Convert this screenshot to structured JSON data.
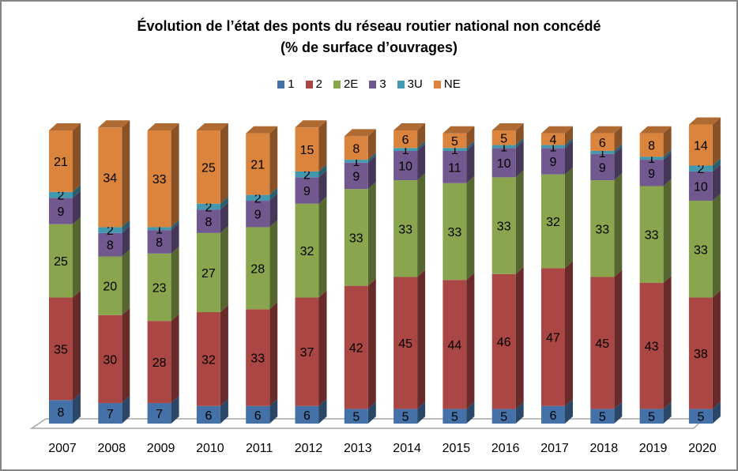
{
  "chart_data": {
    "type": "bar",
    "stacked": true,
    "style": "3d-stacked-column-100-percent",
    "title": "Évolution de l’état des ponts du réseau routier national non concédé",
    "subtitle": "(% de surface d’ouvrages)",
    "xlabel": "",
    "ylabel": "",
    "ylim": [
      0,
      100
    ],
    "grid": false,
    "legend_position": "top",
    "categories": [
      "2007",
      "2008",
      "2009",
      "2010",
      "2011",
      "2012",
      "2013",
      "2014",
      "2015",
      "2016",
      "2017",
      "2018",
      "2019",
      "2020"
    ],
    "series": [
      {
        "name": "1",
        "color": "#4472a8",
        "values": [
          8,
          7,
          7,
          6,
          6,
          6,
          5,
          5,
          5,
          5,
          6,
          5,
          5,
          5
        ]
      },
      {
        "name": "2",
        "color": "#aa4643",
        "values": [
          35,
          30,
          28,
          32,
          33,
          37,
          42,
          45,
          44,
          46,
          47,
          45,
          43,
          38
        ]
      },
      {
        "name": "2E",
        "color": "#89a54e",
        "values": [
          25,
          20,
          23,
          27,
          28,
          32,
          33,
          33,
          33,
          33,
          32,
          33,
          33,
          33
        ]
      },
      {
        "name": "3",
        "color": "#71588f",
        "values": [
          9,
          8,
          8,
          8,
          9,
          9,
          9,
          10,
          11,
          10,
          9,
          9,
          9,
          10
        ]
      },
      {
        "name": "3U",
        "color": "#4198af",
        "values": [
          2,
          2,
          1,
          2,
          2,
          2,
          1,
          1,
          1,
          1,
          1,
          1,
          1,
          2
        ]
      },
      {
        "name": "NE",
        "color": "#db843d",
        "values": [
          21,
          34,
          33,
          25,
          21,
          15,
          8,
          6,
          5,
          5,
          4,
          6,
          8,
          14
        ]
      }
    ]
  }
}
